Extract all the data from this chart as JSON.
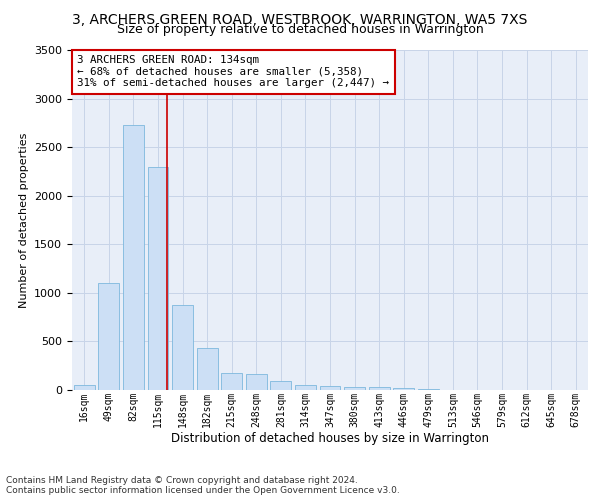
{
  "title": "3, ARCHERS GREEN ROAD, WESTBROOK, WARRINGTON, WA5 7XS",
  "subtitle": "Size of property relative to detached houses in Warrington",
  "xlabel": "Distribution of detached houses by size in Warrington",
  "ylabel": "Number of detached properties",
  "categories": [
    "16sqm",
    "49sqm",
    "82sqm",
    "115sqm",
    "148sqm",
    "182sqm",
    "215sqm",
    "248sqm",
    "281sqm",
    "314sqm",
    "347sqm",
    "380sqm",
    "413sqm",
    "446sqm",
    "479sqm",
    "513sqm",
    "546sqm",
    "579sqm",
    "612sqm",
    "645sqm",
    "678sqm"
  ],
  "values": [
    55,
    1100,
    2730,
    2300,
    880,
    430,
    170,
    160,
    90,
    55,
    45,
    35,
    30,
    20,
    10,
    5,
    5,
    0,
    0,
    0,
    0
  ],
  "bar_color": "#ccdff5",
  "bar_edge_color": "#7db8dd",
  "annotation_box_text": "3 ARCHERS GREEN ROAD: 134sqm\n← 68% of detached houses are smaller (5,358)\n31% of semi-detached houses are larger (2,447) →",
  "annotation_box_color": "#ffffff",
  "annotation_box_edge_color": "#cc0000",
  "vline_color": "#cc0000",
  "vline_x": 3.38,
  "grid_color": "#c8d4e8",
  "bg_color": "#e8eef8",
  "footer_line1": "Contains HM Land Registry data © Crown copyright and database right 2024.",
  "footer_line2": "Contains public sector information licensed under the Open Government Licence v3.0.",
  "ylim": [
    0,
    3500
  ],
  "title_fontsize": 10,
  "subtitle_fontsize": 9,
  "xlabel_fontsize": 8.5,
  "ylabel_fontsize": 8,
  "tick_fontsize": 8,
  "xtick_fontsize": 7,
  "footer_fontsize": 6.5
}
